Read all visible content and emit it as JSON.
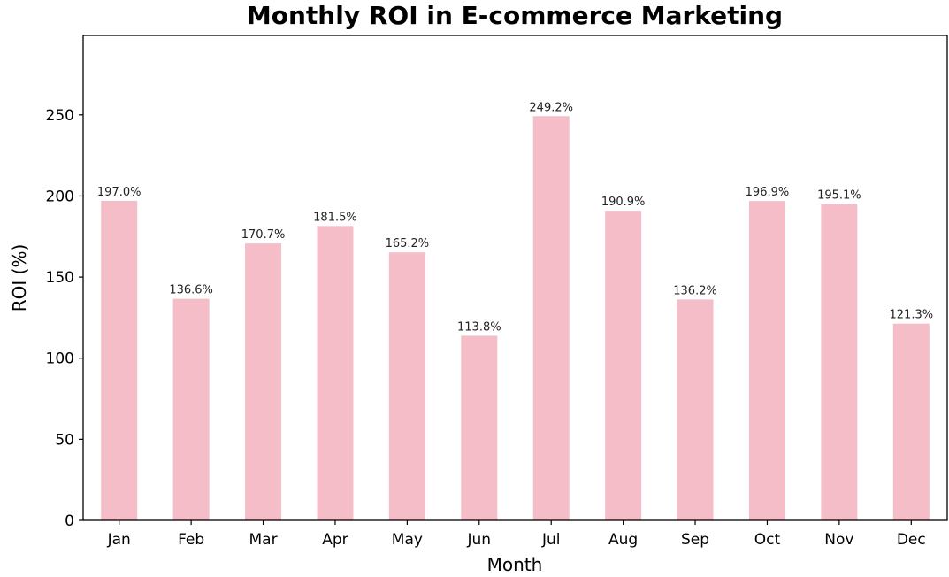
{
  "chart_data": {
    "type": "bar",
    "title": "Monthly ROI in E-commerce Marketing",
    "xlabel": "Month",
    "ylabel": "ROI (%)",
    "categories": [
      "Jan",
      "Feb",
      "Mar",
      "Apr",
      "May",
      "Jun",
      "Jul",
      "Aug",
      "Sep",
      "Oct",
      "Nov",
      "Dec"
    ],
    "values": [
      197.0,
      136.6,
      170.7,
      181.5,
      165.2,
      113.8,
      249.2,
      190.9,
      136.2,
      196.9,
      195.1,
      121.3
    ],
    "data_labels": [
      "197.0%",
      "136.6%",
      "170.7%",
      "181.5%",
      "165.2%",
      "113.8%",
      "249.2%",
      "190.9%",
      "136.2%",
      "196.9%",
      "195.1%",
      "121.3%"
    ],
    "yticks": [
      0,
      50,
      100,
      150,
      200,
      250
    ],
    "ylim": [
      0,
      299
    ],
    "grid": false,
    "bar_color": "#f4bdc7",
    "axis_color": "#000000"
  }
}
